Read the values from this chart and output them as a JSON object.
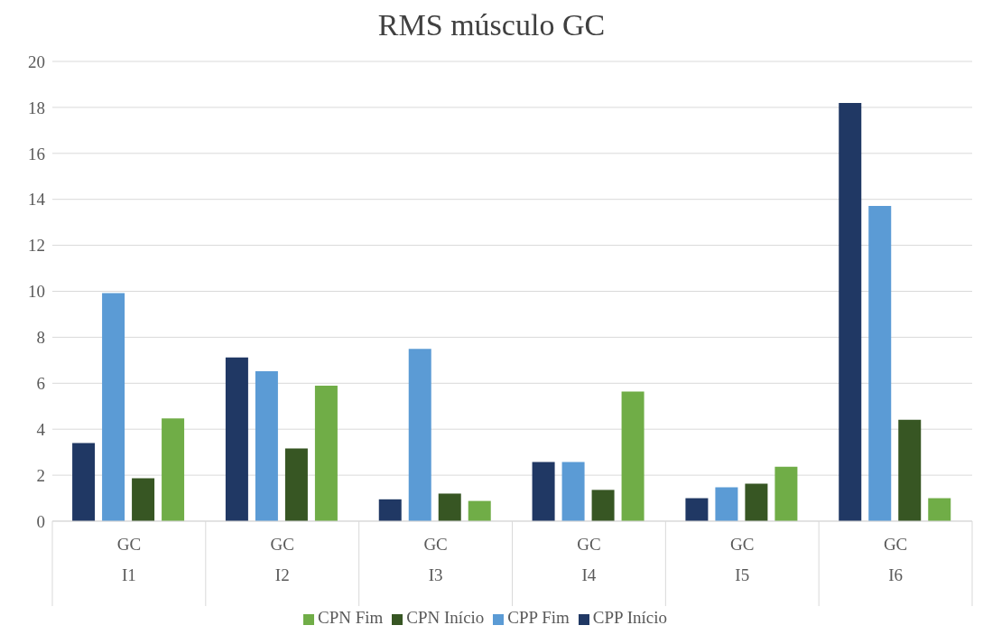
{
  "chart_data": {
    "type": "bar",
    "title": "RMS músculo GC",
    "categories": [
      "GC\nI1",
      "GC\nI2",
      "GC\nI3",
      "GC\nI4",
      "GC\nI5",
      "GC\nI6"
    ],
    "series": [
      {
        "name": "CPP Início",
        "color": "#203864",
        "values": [
          3.4,
          7.12,
          0.95,
          2.57,
          1.0,
          18.19
        ]
      },
      {
        "name": "CPP Fim",
        "color": "#5b9bd5",
        "values": [
          9.92,
          6.52,
          7.5,
          2.57,
          1.47,
          13.71
        ]
      },
      {
        "name": "CPN Início",
        "color": "#375623",
        "values": [
          1.87,
          3.16,
          1.2,
          1.36,
          1.63,
          4.41
        ]
      },
      {
        "name": "CPN Fim",
        "color": "#70ad47",
        "values": [
          4.47,
          5.89,
          0.88,
          5.64,
          2.37,
          1.0
        ]
      }
    ],
    "ylim": [
      0,
      20
    ],
    "yticks": [
      0,
      2,
      4,
      6,
      8,
      10,
      12,
      14,
      16,
      18,
      20
    ],
    "grid": "y",
    "legend": "bottom"
  }
}
